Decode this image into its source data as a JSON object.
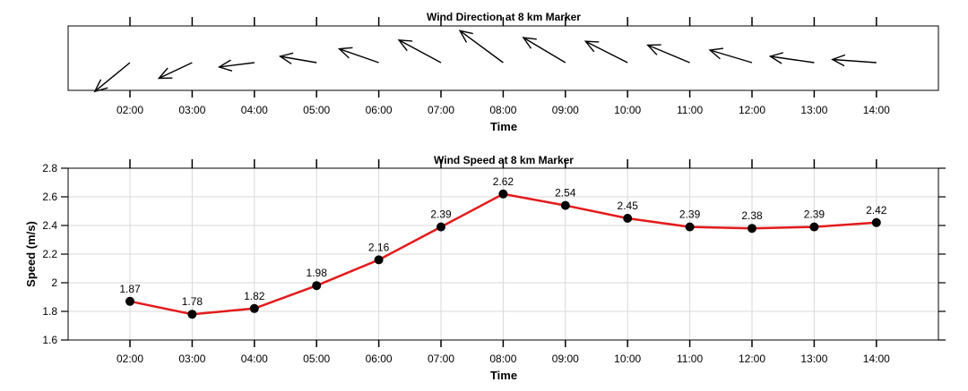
{
  "colors": {
    "line": "#e41a1c",
    "point": "#000000",
    "grid": "#d9d9d9",
    "axis": "#000000",
    "arrow": "#000000"
  },
  "chart_data": [
    {
      "type": "quiver",
      "title": "Wind Direction at 8 km Marker",
      "xlabel": "Time",
      "ylabel": "",
      "categories": [
        "02:00",
        "03:00",
        "04:00",
        "05:00",
        "06:00",
        "07:00",
        "08:00",
        "09:00",
        "10:00",
        "11:00",
        "12:00",
        "13:00",
        "14:00"
      ],
      "arrows": [
        {
          "time": "02:00",
          "dx": -0.56,
          "dy": -0.46
        },
        {
          "time": "03:00",
          "dx": -0.53,
          "dy": -0.25
        },
        {
          "time": "04:00",
          "dx": -0.56,
          "dy": -0.07
        },
        {
          "time": "05:00",
          "dx": -0.58,
          "dy": 0.1
        },
        {
          "time": "06:00",
          "dx": -0.63,
          "dy": 0.22
        },
        {
          "time": "07:00",
          "dx": -0.67,
          "dy": 0.36
        },
        {
          "time": "08:00",
          "dx": -0.69,
          "dy": 0.51
        },
        {
          "time": "09:00",
          "dx": -0.67,
          "dy": 0.4
        },
        {
          "time": "10:00",
          "dx": -0.67,
          "dy": 0.34
        },
        {
          "time": "11:00",
          "dx": -0.67,
          "dy": 0.28
        },
        {
          "time": "12:00",
          "dx": -0.67,
          "dy": 0.2
        },
        {
          "time": "13:00",
          "dx": -0.7,
          "dy": 0.1
        },
        {
          "time": "14:00",
          "dx": -0.7,
          "dy": 0.05
        }
      ],
      "grid": false
    },
    {
      "type": "line",
      "title": "Wind Speed at 8 km Marker",
      "xlabel": "Time",
      "ylabel": "Speed (m/s)",
      "categories": [
        "02:00",
        "03:00",
        "04:00",
        "05:00",
        "06:00",
        "07:00",
        "08:00",
        "09:00",
        "10:00",
        "11:00",
        "12:00",
        "13:00",
        "14:00"
      ],
      "series": [
        {
          "values": [
            1.87,
            1.78,
            1.82,
            1.98,
            2.16,
            2.39,
            2.62,
            2.54,
            2.45,
            2.39,
            2.38,
            2.39,
            2.42
          ]
        }
      ],
      "data_labels": [
        "1.87",
        "1.78",
        "1.82",
        "1.98",
        "2.16",
        "2.39",
        "2.62",
        "2.54",
        "2.45",
        "2.39",
        "2.38",
        "2.39",
        "2.42"
      ],
      "ylim": [
        1.6,
        2.8
      ],
      "yticks": [
        1.6,
        1.8,
        2.0,
        2.2,
        2.4,
        2.6,
        2.8
      ],
      "ytick_labels": [
        "1.6",
        "1.8",
        "2",
        "2.2",
        "2.4",
        "2.6",
        "2.8"
      ],
      "grid": true
    }
  ]
}
